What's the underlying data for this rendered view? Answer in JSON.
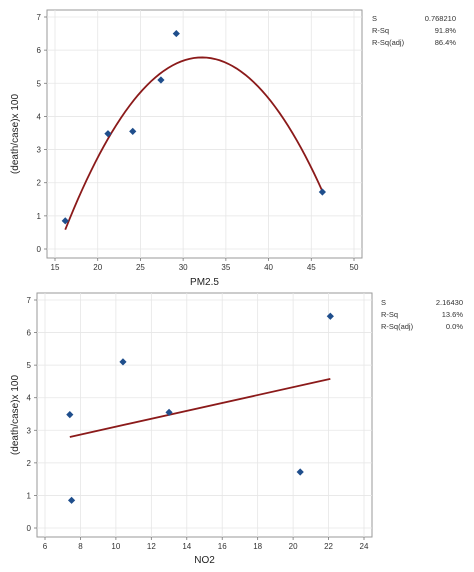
{
  "chart_data": [
    {
      "type": "scatter",
      "title": "",
      "xlabel": "PM2.5",
      "ylabel": "(death/case)x 100",
      "xlim": [
        15,
        50
      ],
      "ylim": [
        0,
        7
      ],
      "xticks": [
        "15",
        "20",
        "25",
        "30",
        "35",
        "40",
        "45",
        "50"
      ],
      "yticks": [
        "0",
        "1",
        "2",
        "3",
        "4",
        "5",
        "6",
        "7"
      ],
      "grid": true,
      "points": {
        "x": [
          16.2,
          21.2,
          24.1,
          27.4,
          29.2,
          46.3
        ],
        "y": [
          0.85,
          3.48,
          3.55,
          5.1,
          6.5,
          1.72
        ]
      },
      "fit": {
        "type": "quadratic",
        "x_range": [
          16.2,
          46.3
        ],
        "vertex_x": 32.2,
        "vertex_y": 5.78,
        "a": -0.0203
      },
      "marker_color": "#1f4e8c",
      "line_color": "#8b1a1a",
      "stats": [
        {
          "label": "S",
          "value": "0.768210"
        },
        {
          "label": "R-Sq",
          "value": "91.8%"
        },
        {
          "label": "R-Sq(adj)",
          "value": "86.4%"
        }
      ]
    },
    {
      "type": "scatter",
      "title": "",
      "xlabel": "NO2",
      "ylabel": "(death/case)x 100",
      "xlim": [
        6,
        24
      ],
      "ylim": [
        0,
        7
      ],
      "xticks": [
        "6",
        "8",
        "10",
        "12",
        "14",
        "16",
        "18",
        "20",
        "22",
        "24"
      ],
      "yticks": [
        "0",
        "1",
        "2",
        "3",
        "4",
        "5",
        "6",
        "7"
      ],
      "grid": true,
      "points": {
        "x": [
          7.4,
          7.5,
          10.4,
          13.0,
          20.4,
          22.1
        ],
        "y": [
          3.48,
          0.85,
          5.1,
          3.55,
          1.72,
          6.5
        ]
      },
      "fit": {
        "type": "linear",
        "x_range": [
          7.4,
          22.1
        ],
        "slope": 0.1213,
        "intercept": 1.898
      },
      "marker_color": "#1f4e8c",
      "line_color": "#8b1a1a",
      "stats": [
        {
          "label": "S",
          "value": "2.16430"
        },
        {
          "label": "R-Sq",
          "value": "13.6%"
        },
        {
          "label": "R-Sq(adj)",
          "value": "0.0%"
        }
      ]
    }
  ]
}
